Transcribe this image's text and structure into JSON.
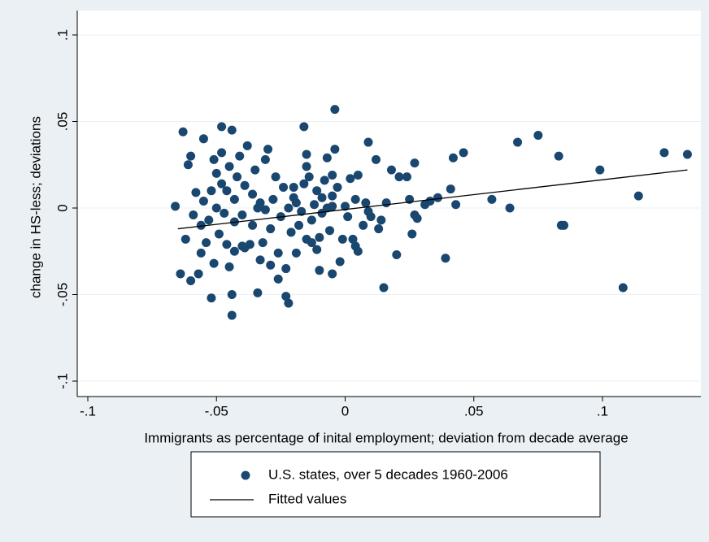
{
  "chart_data": {
    "type": "scatter",
    "x_label": "Immigrants as percentage of inital employment; deviation from decade average",
    "y_label": "change in HS-less; deviations",
    "xlim": [
      -0.1,
      0.13
    ],
    "ylim": [
      -0.1,
      0.1
    ],
    "xticks": [
      {
        "value": -0.1,
        "label": "-.1"
      },
      {
        "value": -0.05,
        "label": "-.05"
      },
      0,
      {
        "value": 0.05,
        "label": ".05"
      },
      {
        "value": 0.1,
        "label": ".1"
      }
    ],
    "yticks": [
      {
        "value": -0.1,
        "label": "-.1"
      },
      {
        "value": -0.05,
        "label": "-.05"
      },
      0,
      {
        "value": 0.05,
        "label": ".05"
      },
      {
        "value": 0.1,
        "label": ".1"
      }
    ],
    "grid": true,
    "series": [
      {
        "name": "U.S. states, over 5 decades 1960-2006",
        "kind": "points",
        "color": "#1a476f",
        "x": [
          0.133,
          0.124,
          0.114,
          0.108,
          0.099,
          0.085,
          0.084,
          0.083,
          0.075,
          0.067,
          0.064,
          0.057,
          0.046,
          0.042,
          0.043,
          0.041,
          0.039,
          0.036,
          0.033,
          0.031,
          0.027,
          0.027,
          0.028,
          0.026,
          0.025,
          0.024,
          0.021,
          0.02,
          0.018,
          0.015,
          0.016,
          0.014,
          0.012,
          0.01,
          0.009,
          0.008,
          0.007,
          0.005,
          0.004,
          0.003,
          0.004,
          0.002,
          0.001,
          0,
          -0.001,
          -0.004,
          -0.004,
          -0.005,
          -0.005,
          -0.005,
          -0.006,
          -0.005,
          -0.007,
          -0.008,
          -0.009,
          -0.009,
          -0.01,
          -0.01,
          -0.011,
          -0.012,
          -0.013,
          -0.014,
          -0.015,
          -0.015,
          -0.016,
          -0.016,
          -0.017,
          -0.018,
          -0.019,
          -0.02,
          -0.021,
          -0.022,
          -0.022,
          -0.023,
          -0.023,
          -0.024,
          -0.025,
          -0.026,
          -0.026,
          -0.027,
          -0.028,
          -0.029,
          -0.03,
          -0.031,
          -0.032,
          -0.033,
          -0.033,
          -0.034,
          -0.035,
          -0.036,
          -0.036,
          -0.037,
          -0.038,
          -0.039,
          -0.04,
          -0.04,
          -0.041,
          -0.042,
          -0.043,
          -0.043,
          -0.043,
          -0.044,
          -0.044,
          -0.044,
          -0.045,
          -0.045,
          -0.046,
          -0.047,
          -0.048,
          -0.048,
          -0.049,
          -0.05,
          -0.05,
          -0.051,
          -0.051,
          -0.052,
          -0.052,
          -0.053,
          -0.054,
          -0.055,
          -0.055,
          -0.056,
          -0.056,
          -0.057,
          -0.059,
          -0.06,
          -0.06,
          -0.061,
          -0.062,
          -0.063,
          -0.064,
          -0.066,
          -0.058,
          -0.048,
          -0.046,
          -0.039,
          -0.031,
          -0.029,
          -0.019,
          -0.013,
          -0.011,
          -0.007,
          -0.002,
          0.005,
          0.009,
          0.013,
          -0.003,
          -0.034,
          -0.02,
          -0.015
        ],
        "values": [
          0.031,
          0.032,
          0.007,
          -0.046,
          0.022,
          -0.01,
          -0.01,
          0.03,
          0.042,
          0.038,
          0,
          0.005,
          0.032,
          0.029,
          0.002,
          0.011,
          -0.029,
          0.006,
          0.004,
          0.002,
          0.026,
          -0.004,
          -0.006,
          -0.015,
          0.005,
          0.018,
          0.018,
          -0.027,
          0.022,
          -0.046,
          0.003,
          -0.007,
          0.028,
          -0.005,
          0.038,
          0.003,
          -0.01,
          0.019,
          0.005,
          -0.018,
          -0.022,
          0.017,
          -0.005,
          0.001,
          -0.018,
          0.057,
          0.034,
          0.019,
          0.007,
          0.001,
          -0.013,
          -0.038,
          0.029,
          0.016,
          0.006,
          -0.003,
          -0.017,
          -0.036,
          0.01,
          0.002,
          -0.007,
          0.018,
          0.031,
          0.024,
          0.047,
          0.014,
          -0.002,
          -0.01,
          -0.026,
          0.006,
          -0.014,
          0,
          -0.055,
          -0.035,
          -0.051,
          0.012,
          -0.005,
          -0.026,
          -0.041,
          0.018,
          0.005,
          -0.012,
          0.034,
          0.028,
          -0.02,
          0.003,
          -0.03,
          -0.049,
          0.022,
          0.008,
          -0.01,
          -0.021,
          0.036,
          0.013,
          -0.004,
          -0.022,
          0.03,
          0.018,
          0.005,
          -0.008,
          -0.025,
          0.045,
          -0.05,
          -0.062,
          0.024,
          -0.034,
          0.01,
          -0.003,
          0.032,
          0.047,
          -0.015,
          0.02,
          0,
          0.028,
          -0.032,
          -0.052,
          0.01,
          -0.007,
          -0.02,
          0.004,
          0.04,
          -0.01,
          -0.026,
          -0.038,
          -0.004,
          -0.042,
          0.03,
          0.025,
          -0.018,
          0.044,
          -0.038,
          0.001,
          0.009,
          0.014,
          -0.021,
          -0.023,
          -0.001,
          -0.033,
          0.003,
          -0.02,
          -0.024,
          0,
          -0.031,
          -0.025,
          -0.002,
          -0.012,
          0.012,
          0,
          0.012,
          -0.018
        ]
      },
      {
        "name": "Fitted values",
        "kind": "line",
        "color": "#000000",
        "x": [
          -0.065,
          0.133
        ],
        "values": [
          -0.012,
          0.022
        ]
      }
    ]
  }
}
